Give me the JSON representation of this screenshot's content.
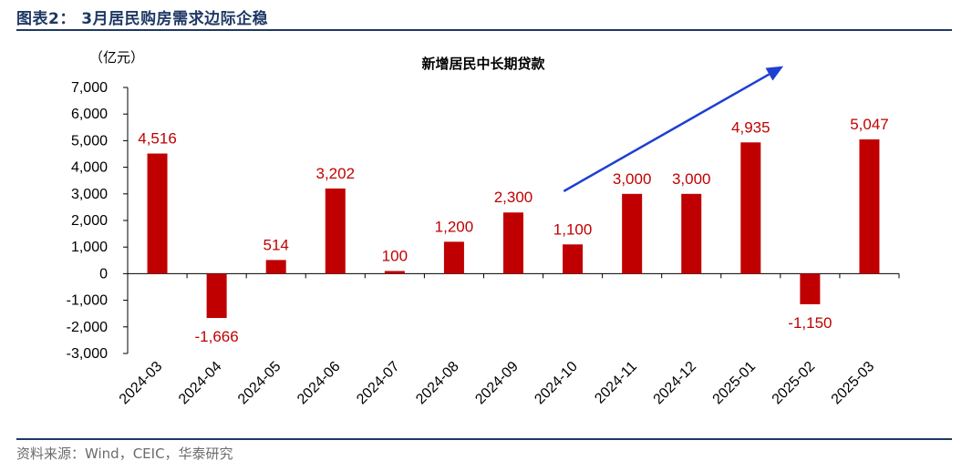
{
  "figure_title": "图表2：  3月居民购房需求边际企稳",
  "source": "资料来源：Wind，CEIC，华泰研究",
  "chart_data": {
    "type": "bar",
    "title": "新增居民中长期贷款",
    "unit_label": "（亿元）",
    "categories": [
      "2024-03",
      "2024-04",
      "2024-05",
      "2024-06",
      "2024-07",
      "2024-08",
      "2024-09",
      "2024-10",
      "2024-11",
      "2024-12",
      "2025-01",
      "2025-02",
      "2025-03"
    ],
    "values": [
      4516,
      -1666,
      514,
      3202,
      100,
      1200,
      2300,
      1100,
      3000,
      3000,
      4935,
      -1150,
      5047
    ],
    "data_labels": [
      "4,516",
      "-1,666",
      "514",
      "3,202",
      "100",
      "1,200",
      "2,300",
      "1,100",
      "3,000",
      "3,000",
      "4,935",
      "-1,150",
      "5,047"
    ],
    "ylim": [
      -3000,
      7000
    ],
    "yticks": [
      7000,
      6000,
      5000,
      4000,
      3000,
      2000,
      1000,
      0,
      -1000,
      -2000,
      -3000
    ],
    "ytick_labels": [
      "7,000",
      "6,000",
      "5,000",
      "4,000",
      "3,000",
      "2,000",
      "1,000",
      "0",
      "-1,000",
      "-2,000",
      "-3,000"
    ],
    "bar_color": "#c00000",
    "label_color": "#c00000",
    "arrow_color": "#1f3fd1",
    "grid": false,
    "legend": "none"
  }
}
